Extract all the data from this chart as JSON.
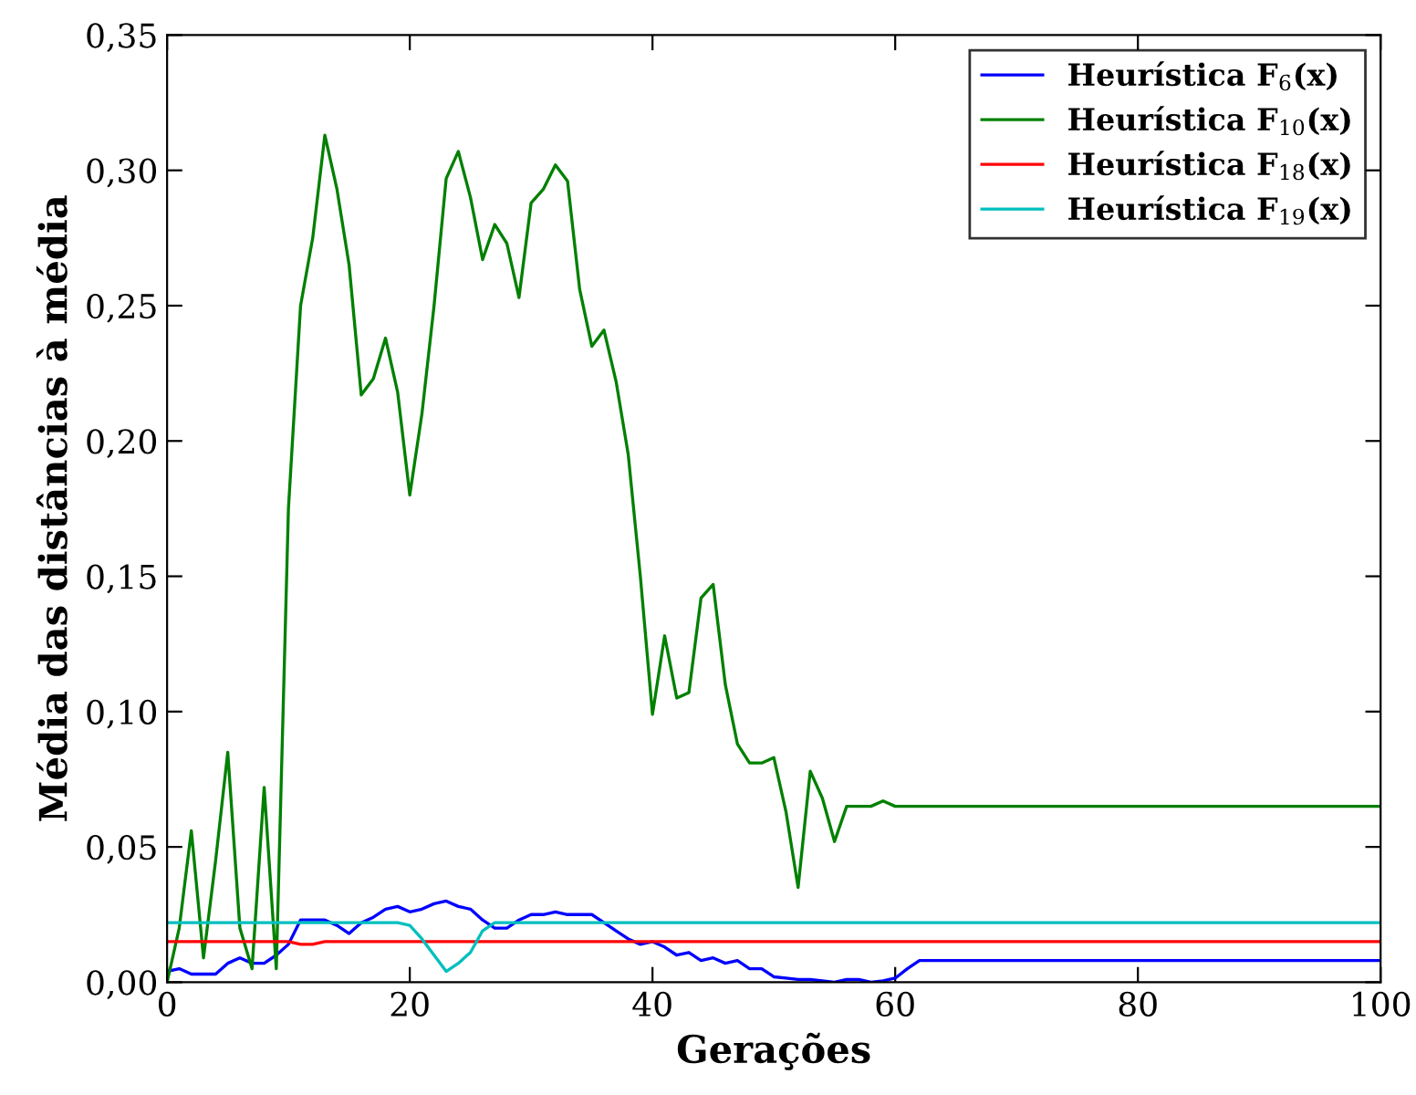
{
  "chart_data": {
    "type": "line",
    "xlabel": "Gerações",
    "ylabel": "Média das distâncias à média",
    "legend": "top right",
    "grid": false,
    "marker": "none",
    "line_style": "solid",
    "xlim": [
      0,
      100
    ],
    "xticks": [
      0,
      20,
      40,
      60,
      80,
      100
    ],
    "ylim": [
      0,
      0.35
    ],
    "yticks": [
      {
        "value": 0,
        "label": "0,00"
      },
      {
        "value": 0.05,
        "label": "0,05"
      },
      {
        "value": 0.1,
        "label": "0,10"
      },
      {
        "value": 0.15,
        "label": "0,15"
      },
      {
        "value": 0.2,
        "label": "0,20"
      },
      {
        "value": 0.25,
        "label": "0,25"
      },
      {
        "value": 0.3,
        "label": "0,30"
      },
      {
        "value": 0.35,
        "label": "0,35"
      }
    ],
    "x": [
      0,
      1,
      2,
      3,
      4,
      5,
      6,
      7,
      8,
      9,
      10,
      11,
      12,
      13,
      14,
      15,
      16,
      17,
      18,
      19,
      20,
      21,
      22,
      23,
      24,
      25,
      26,
      27,
      28,
      29,
      30,
      31,
      32,
      33,
      34,
      35,
      36,
      37,
      38,
      39,
      40,
      41,
      42,
      43,
      44,
      45,
      46,
      47,
      48,
      49,
      50,
      51,
      52,
      53,
      54,
      55,
      56,
      57,
      58,
      59,
      60,
      61,
      62,
      63,
      64,
      65,
      66,
      67,
      68,
      69,
      70,
      71,
      72,
      73,
      74,
      75,
      76,
      77,
      78,
      79,
      80,
      81,
      82,
      83,
      84,
      85,
      86,
      87,
      88,
      89,
      90,
      91,
      92,
      93,
      94,
      95,
      96,
      97,
      98,
      99,
      100
    ],
    "series": [
      {
        "name": "Heurística F$_{6}$(x)",
        "color": "#0000ff",
        "values": [
          0.004,
          0.005,
          0.003,
          0.003,
          0.003,
          0.007,
          0.009,
          0.007,
          0.007,
          0.01,
          0.014,
          0.023,
          0.023,
          0.023,
          0.021,
          0.018,
          0.022,
          0.024,
          0.027,
          0.028,
          0.026,
          0.027,
          0.029,
          0.03,
          0.028,
          0.027,
          0.023,
          0.02,
          0.02,
          0.023,
          0.025,
          0.025,
          0.026,
          0.025,
          0.025,
          0.025,
          0.022,
          0.019,
          0.016,
          0.014,
          0.015,
          0.013,
          0.01,
          0.011,
          0.008,
          0.009,
          0.007,
          0.008,
          0.005,
          0.005,
          0.002,
          0.0015,
          0.001,
          0.001,
          0.0005,
          0.0,
          0.001,
          0.001,
          0.0,
          0.0005,
          0.0015,
          0.005,
          0.008,
          0.008,
          0.008,
          0.008,
          0.008,
          0.008,
          0.008,
          0.008,
          0.008,
          0.008,
          0.008,
          0.008,
          0.008,
          0.008,
          0.008,
          0.008,
          0.008,
          0.008,
          0.008,
          0.008,
          0.008,
          0.008,
          0.008,
          0.008,
          0.008,
          0.008,
          0.008,
          0.008,
          0.008,
          0.008,
          0.008,
          0.008,
          0.008,
          0.008,
          0.008,
          0.008,
          0.008,
          0.008,
          0.008
        ]
      },
      {
        "name": "Heurística F$_{10}$(x)",
        "color": "#008000",
        "values": [
          0.0,
          0.02,
          0.056,
          0.009,
          0.045,
          0.085,
          0.02,
          0.005,
          0.072,
          0.005,
          0.175,
          0.25,
          0.275,
          0.313,
          0.293,
          0.265,
          0.217,
          0.223,
          0.238,
          0.218,
          0.18,
          0.21,
          0.25,
          0.297,
          0.307,
          0.29,
          0.267,
          0.28,
          0.273,
          0.253,
          0.288,
          0.293,
          0.302,
          0.296,
          0.256,
          0.235,
          0.241,
          0.222,
          0.195,
          0.15,
          0.099,
          0.128,
          0.105,
          0.107,
          0.142,
          0.147,
          0.11,
          0.088,
          0.081,
          0.081,
          0.083,
          0.063,
          0.035,
          0.078,
          0.068,
          0.052,
          0.065,
          0.065,
          0.065,
          0.067,
          0.065,
          0.065,
          0.065,
          0.065,
          0.065,
          0.065,
          0.065,
          0.065,
          0.065,
          0.065,
          0.065,
          0.065,
          0.065,
          0.065,
          0.065,
          0.065,
          0.065,
          0.065,
          0.065,
          0.065,
          0.065,
          0.065,
          0.065,
          0.065,
          0.065,
          0.065,
          0.065,
          0.065,
          0.065,
          0.065,
          0.065,
          0.065,
          0.065,
          0.065,
          0.065,
          0.065,
          0.065,
          0.065,
          0.065,
          0.065,
          0.065
        ]
      },
      {
        "name": "Heurística F$_{18}$(x)",
        "color": "#ff0000",
        "values": [
          0.015,
          0.015,
          0.015,
          0.015,
          0.015,
          0.015,
          0.015,
          0.015,
          0.015,
          0.015,
          0.015,
          0.014,
          0.014,
          0.015,
          0.015,
          0.015,
          0.015,
          0.015,
          0.015,
          0.015,
          0.015,
          0.015,
          0.015,
          0.015,
          0.015,
          0.015,
          0.015,
          0.015,
          0.015,
          0.015,
          0.015,
          0.015,
          0.015,
          0.015,
          0.015,
          0.015,
          0.015,
          0.015,
          0.015,
          0.015,
          0.015,
          0.015,
          0.015,
          0.015,
          0.015,
          0.015,
          0.015,
          0.015,
          0.015,
          0.015,
          0.015,
          0.015,
          0.015,
          0.015,
          0.015,
          0.015,
          0.015,
          0.015,
          0.015,
          0.015,
          0.015,
          0.015,
          0.015,
          0.015,
          0.015,
          0.015,
          0.015,
          0.015,
          0.015,
          0.015,
          0.015,
          0.015,
          0.015,
          0.015,
          0.015,
          0.015,
          0.015,
          0.015,
          0.015,
          0.015,
          0.015,
          0.015,
          0.015,
          0.015,
          0.015,
          0.015,
          0.015,
          0.015,
          0.015,
          0.015,
          0.015,
          0.015,
          0.015,
          0.015,
          0.015,
          0.015,
          0.015,
          0.015,
          0.015,
          0.015,
          0.015
        ]
      },
      {
        "name": "Heurística F$_{19}$(x)",
        "color": "#00bfbf",
        "values": [
          0.022,
          0.022,
          0.022,
          0.022,
          0.022,
          0.022,
          0.022,
          0.022,
          0.022,
          0.022,
          0.022,
          0.022,
          0.022,
          0.022,
          0.022,
          0.022,
          0.022,
          0.022,
          0.022,
          0.022,
          0.021,
          0.016,
          0.01,
          0.004,
          0.007,
          0.011,
          0.019,
          0.022,
          0.022,
          0.022,
          0.022,
          0.022,
          0.022,
          0.022,
          0.022,
          0.022,
          0.022,
          0.022,
          0.022,
          0.022,
          0.022,
          0.022,
          0.022,
          0.022,
          0.022,
          0.022,
          0.022,
          0.022,
          0.022,
          0.022,
          0.022,
          0.022,
          0.022,
          0.022,
          0.022,
          0.022,
          0.022,
          0.022,
          0.022,
          0.022,
          0.022,
          0.022,
          0.022,
          0.022,
          0.022,
          0.022,
          0.022,
          0.022,
          0.022,
          0.022,
          0.022,
          0.022,
          0.022,
          0.022,
          0.022,
          0.022,
          0.022,
          0.022,
          0.022,
          0.022,
          0.022,
          0.022,
          0.022,
          0.022,
          0.022,
          0.022,
          0.022,
          0.022,
          0.022,
          0.022,
          0.022,
          0.022,
          0.022,
          0.022,
          0.022,
          0.022,
          0.022,
          0.022,
          0.022,
          0.022,
          0.022
        ]
      }
    ]
  }
}
